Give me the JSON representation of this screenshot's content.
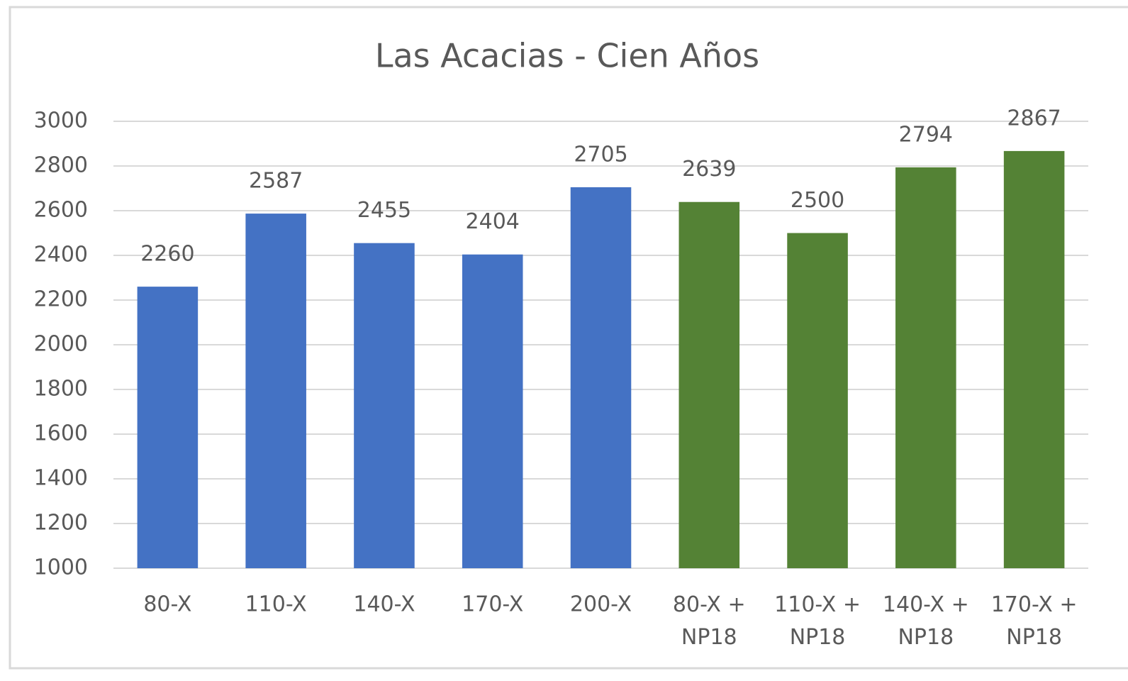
{
  "chart_data": {
    "type": "bar",
    "title": "Las Acacias - Cien Años",
    "categories": [
      "80-X",
      "110-X",
      "140-X",
      "170-X",
      "200-X",
      "80-X + NP18",
      "110-X + NP18",
      "140-X + NP18",
      "170-X + NP18"
    ],
    "values": [
      2260,
      2587,
      2455,
      2404,
      2705,
      2639,
      2500,
      2794,
      2867
    ],
    "colors": [
      "#4472c4",
      "#4472c4",
      "#4472c4",
      "#4472c4",
      "#4472c4",
      "#548235",
      "#548235",
      "#548235",
      "#548235"
    ],
    "ylim": [
      1000,
      3000
    ],
    "yticks": [
      1000,
      1200,
      1400,
      1600,
      1800,
      2000,
      2200,
      2400,
      2600,
      2800,
      3000
    ],
    "grid": true
  }
}
